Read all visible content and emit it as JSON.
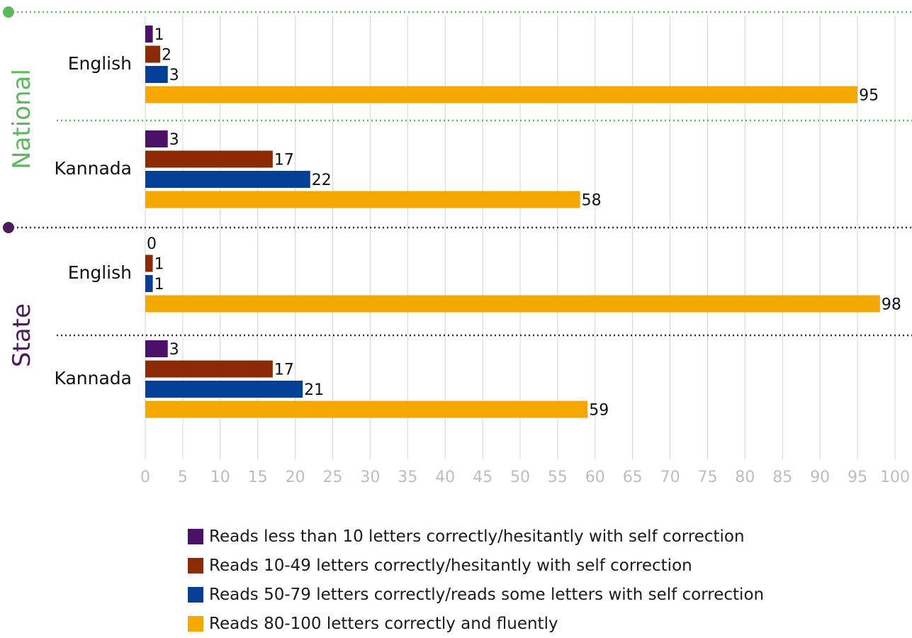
{
  "chart_data": {
    "type": "bar",
    "orientation": "horizontal",
    "xlim": [
      0,
      100
    ],
    "xticks": [
      "0",
      "5",
      "10",
      "15",
      "20",
      "25",
      "30",
      "35",
      "40",
      "45",
      "50",
      "55",
      "60",
      "65",
      "70",
      "75",
      "80",
      "85",
      "90",
      "95",
      "100"
    ],
    "series": [
      {
        "name": "Reads less than 10 letters correctly/hesitantly with self correction",
        "color": "#4b1169"
      },
      {
        "name": "Reads 10-49 letters correctly/hesitantly with self correction",
        "color": "#8b2a04"
      },
      {
        "name": "Reads 50-79 letters correctly/reads some letters with self correction",
        "color": "#033f97"
      },
      {
        "name": "Reads 80-100 letters correctly and fluently",
        "color": "#f5a800"
      }
    ],
    "groups": [
      {
        "section": "National",
        "label": "English",
        "values": [
          1,
          2,
          3,
          95
        ],
        "value_labels": [
          "1",
          "2",
          "3",
          "95"
        ]
      },
      {
        "section": "National",
        "label": "Kannada",
        "values": [
          3,
          17,
          22,
          58
        ],
        "value_labels": [
          "3",
          "17",
          "22",
          "58"
        ]
      },
      {
        "section": "State",
        "label": "English",
        "values": [
          0,
          1,
          1,
          98
        ],
        "value_labels": [
          "0",
          "1",
          "1",
          "98"
        ]
      },
      {
        "section": "State",
        "label": "Kannada",
        "values": [
          3,
          17,
          21,
          59
        ],
        "value_labels": [
          "3",
          "17",
          "21",
          "59"
        ]
      }
    ],
    "sections": [
      {
        "label": "National",
        "color": "#5cb85c"
      },
      {
        "label": "State",
        "color": "#4b1c5c"
      }
    ],
    "grid": true,
    "legend_position": "bottom"
  }
}
